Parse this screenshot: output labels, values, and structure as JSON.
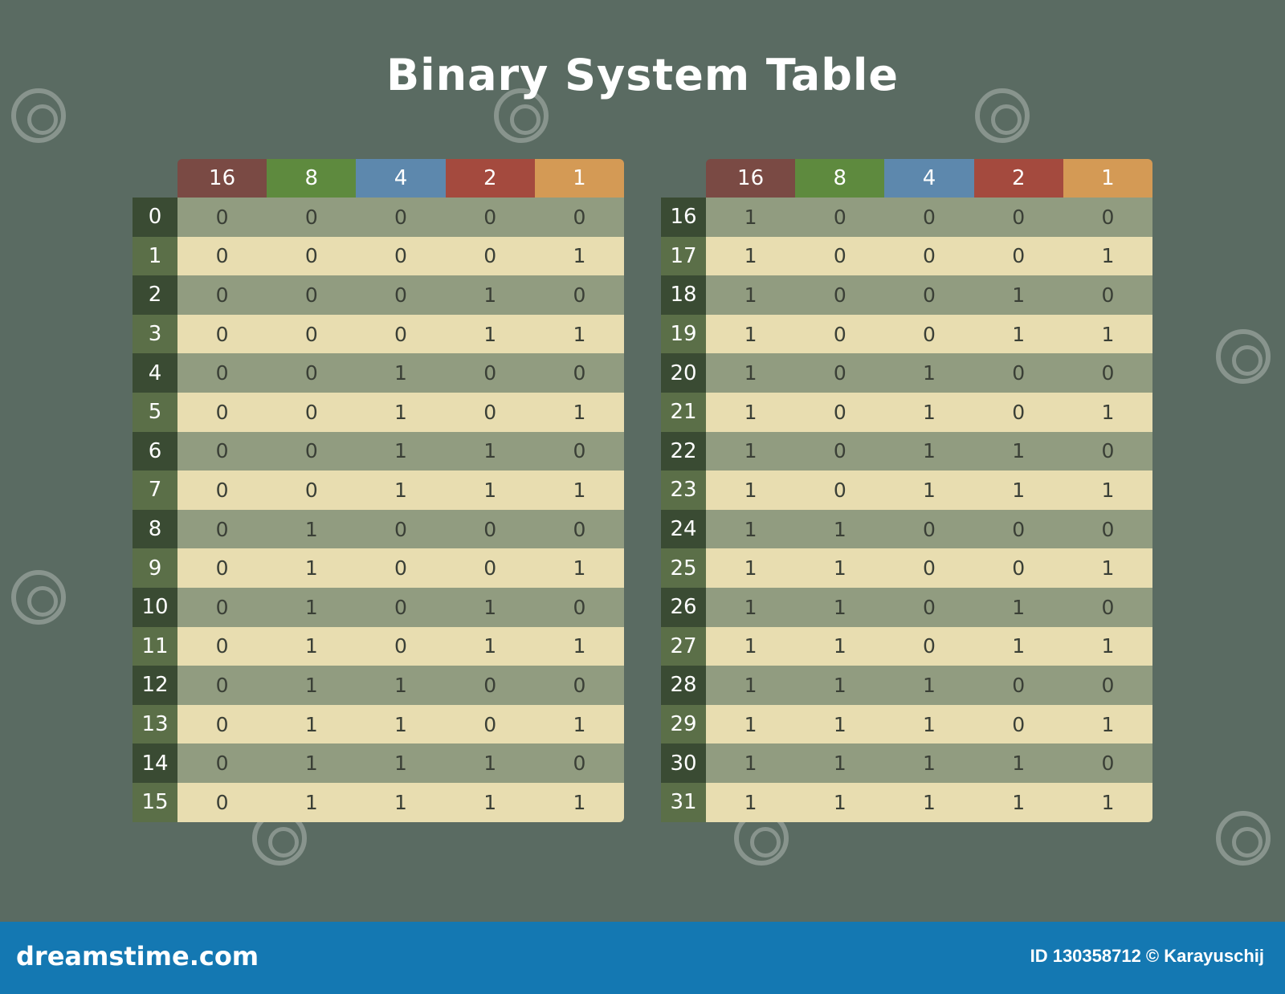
{
  "title": "Binary System Table",
  "headers": [
    {
      "label": "16",
      "color": "#7a4a44"
    },
    {
      "label": "8",
      "color": "#5e8a3e"
    },
    {
      "label": "4",
      "color": "#5d88ad"
    },
    {
      "label": "2",
      "color": "#a44a3e"
    },
    {
      "label": "1",
      "color": "#d49a55"
    }
  ],
  "left_rows": [
    {
      "n": "0",
      "bits": [
        "0",
        "0",
        "0",
        "0",
        "0"
      ]
    },
    {
      "n": "1",
      "bits": [
        "0",
        "0",
        "0",
        "0",
        "1"
      ]
    },
    {
      "n": "2",
      "bits": [
        "0",
        "0",
        "0",
        "1",
        "0"
      ]
    },
    {
      "n": "3",
      "bits": [
        "0",
        "0",
        "0",
        "1",
        "1"
      ]
    },
    {
      "n": "4",
      "bits": [
        "0",
        "0",
        "1",
        "0",
        "0"
      ]
    },
    {
      "n": "5",
      "bits": [
        "0",
        "0",
        "1",
        "0",
        "1"
      ]
    },
    {
      "n": "6",
      "bits": [
        "0",
        "0",
        "1",
        "1",
        "0"
      ]
    },
    {
      "n": "7",
      "bits": [
        "0",
        "0",
        "1",
        "1",
        "1"
      ]
    },
    {
      "n": "8",
      "bits": [
        "0",
        "1",
        "0",
        "0",
        "0"
      ]
    },
    {
      "n": "9",
      "bits": [
        "0",
        "1",
        "0",
        "0",
        "1"
      ]
    },
    {
      "n": "10",
      "bits": [
        "0",
        "1",
        "0",
        "1",
        "0"
      ]
    },
    {
      "n": "11",
      "bits": [
        "0",
        "1",
        "0",
        "1",
        "1"
      ]
    },
    {
      "n": "12",
      "bits": [
        "0",
        "1",
        "1",
        "0",
        "0"
      ]
    },
    {
      "n": "13",
      "bits": [
        "0",
        "1",
        "1",
        "0",
        "1"
      ]
    },
    {
      "n": "14",
      "bits": [
        "0",
        "1",
        "1",
        "1",
        "0"
      ]
    },
    {
      "n": "15",
      "bits": [
        "0",
        "1",
        "1",
        "1",
        "1"
      ]
    }
  ],
  "right_rows": [
    {
      "n": "16",
      "bits": [
        "1",
        "0",
        "0",
        "0",
        "0"
      ]
    },
    {
      "n": "17",
      "bits": [
        "1",
        "0",
        "0",
        "0",
        "1"
      ]
    },
    {
      "n": "18",
      "bits": [
        "1",
        "0",
        "0",
        "1",
        "0"
      ]
    },
    {
      "n": "19",
      "bits": [
        "1",
        "0",
        "0",
        "1",
        "1"
      ]
    },
    {
      "n": "20",
      "bits": [
        "1",
        "0",
        "1",
        "0",
        "0"
      ]
    },
    {
      "n": "21",
      "bits": [
        "1",
        "0",
        "1",
        "0",
        "1"
      ]
    },
    {
      "n": "22",
      "bits": [
        "1",
        "0",
        "1",
        "1",
        "0"
      ]
    },
    {
      "n": "23",
      "bits": [
        "1",
        "0",
        "1",
        "1",
        "1"
      ]
    },
    {
      "n": "24",
      "bits": [
        "1",
        "1",
        "0",
        "0",
        "0"
      ]
    },
    {
      "n": "25",
      "bits": [
        "1",
        "1",
        "0",
        "0",
        "1"
      ]
    },
    {
      "n": "26",
      "bits": [
        "1",
        "1",
        "0",
        "1",
        "0"
      ]
    },
    {
      "n": "27",
      "bits": [
        "1",
        "1",
        "0",
        "1",
        "1"
      ]
    },
    {
      "n": "28",
      "bits": [
        "1",
        "1",
        "1",
        "0",
        "0"
      ]
    },
    {
      "n": "29",
      "bits": [
        "1",
        "1",
        "1",
        "0",
        "1"
      ]
    },
    {
      "n": "30",
      "bits": [
        "1",
        "1",
        "1",
        "1",
        "0"
      ]
    },
    {
      "n": "31",
      "bits": [
        "1",
        "1",
        "1",
        "1",
        "1"
      ]
    }
  ],
  "footer": {
    "brand": "dreamstime.com",
    "credit": "ID 130358712 © Karayuschij"
  },
  "watermark_icon": "swirl-watermark-icon"
}
